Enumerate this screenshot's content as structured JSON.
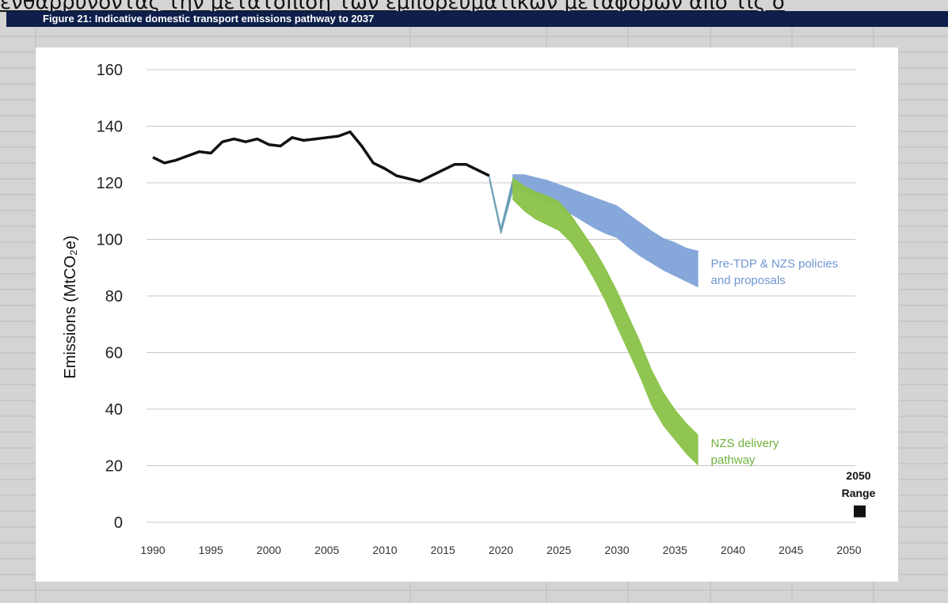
{
  "overlay_text": "ενθαρρύνοντας την μετατόπιση των εμπορευματικών μεταφορών από τις ο",
  "figure_title": "Figure 21: Indicative domestic transport emissions pathway to 2037",
  "chart_data": {
    "type": "area",
    "title": "",
    "xlabel": "",
    "ylabel": "Emissions (MtCO₂e)",
    "xlim": [
      1990,
      2050
    ],
    "ylim": [
      0,
      160
    ],
    "x_ticks": [
      1990,
      1995,
      2000,
      2005,
      2010,
      2015,
      2020,
      2025,
      2030,
      2035,
      2040,
      2045,
      2050
    ],
    "y_ticks": [
      0,
      20,
      40,
      60,
      80,
      100,
      120,
      140,
      160
    ],
    "grid": "horizontal",
    "historical": {
      "color": "#111111",
      "x": [
        1990,
        1991,
        1992,
        1993,
        1994,
        1995,
        1996,
        1997,
        1998,
        1999,
        2000,
        2001,
        2002,
        2003,
        2004,
        2005,
        2006,
        2007,
        2008,
        2009,
        2010,
        2011,
        2012,
        2013,
        2014,
        2015,
        2016,
        2017,
        2018,
        2019
      ],
      "y": [
        129,
        127,
        128,
        129.5,
        131,
        130.5,
        134.5,
        135.5,
        134.5,
        135.5,
        133.5,
        133,
        136,
        135,
        135.5,
        136,
        136.5,
        138,
        133,
        127,
        125,
        122.5,
        121.5,
        120.5,
        122.5,
        124.5,
        126.5,
        126.5,
        124.5,
        122.5
      ]
    },
    "covid_dip": {
      "color": "#6a9fb5",
      "x": [
        2019,
        2020,
        2021
      ],
      "upper": [
        122.5,
        104,
        121
      ],
      "lower": [
        121,
        102,
        117
      ]
    },
    "bands": [
      {
        "name": "Pre-TDP & NZS policies and proposals",
        "color": "#7fa2d8",
        "label_lines": [
          "Pre-TDP & NZS policies",
          "and proposals"
        ],
        "x": [
          2021,
          2022,
          2023,
          2024,
          2025,
          2026,
          2027,
          2028,
          2029,
          2030,
          2031,
          2032,
          2033,
          2034,
          2035,
          2036,
          2037
        ],
        "upper": [
          123,
          123,
          122,
          121,
          119.5,
          118,
          116.5,
          115,
          113.5,
          112,
          109,
          106,
          103,
          100.5,
          99,
          97,
          96
        ],
        "lower": [
          118,
          116.5,
          115,
          113.5,
          112,
          109,
          106.5,
          104,
          102,
          100.5,
          97,
          94,
          91.5,
          89,
          87,
          85,
          83
        ]
      },
      {
        "name": "NZS delivery pathway",
        "color": "#8bc34a",
        "label_lines": [
          "NZS delivery",
          "pathway"
        ],
        "x": [
          2021,
          2022,
          2023,
          2024,
          2025,
          2026,
          2027,
          2028,
          2029,
          2030,
          2031,
          2032,
          2033,
          2034,
          2035,
          2036,
          2037
        ],
        "upper": [
          122,
          119,
          117,
          115.5,
          113.5,
          109,
          103,
          97,
          90,
          82,
          73,
          64,
          54,
          46,
          40,
          35,
          31
        ],
        "lower": [
          114,
          110,
          107,
          105,
          103,
          99,
          93,
          86,
          78,
          69,
          60,
          51,
          41,
          34,
          29,
          24,
          20
        ]
      }
    ],
    "marker_2050": {
      "label_lines": [
        "2050",
        "Range"
      ],
      "x": 2050,
      "y": 4,
      "color": "#111111"
    }
  }
}
